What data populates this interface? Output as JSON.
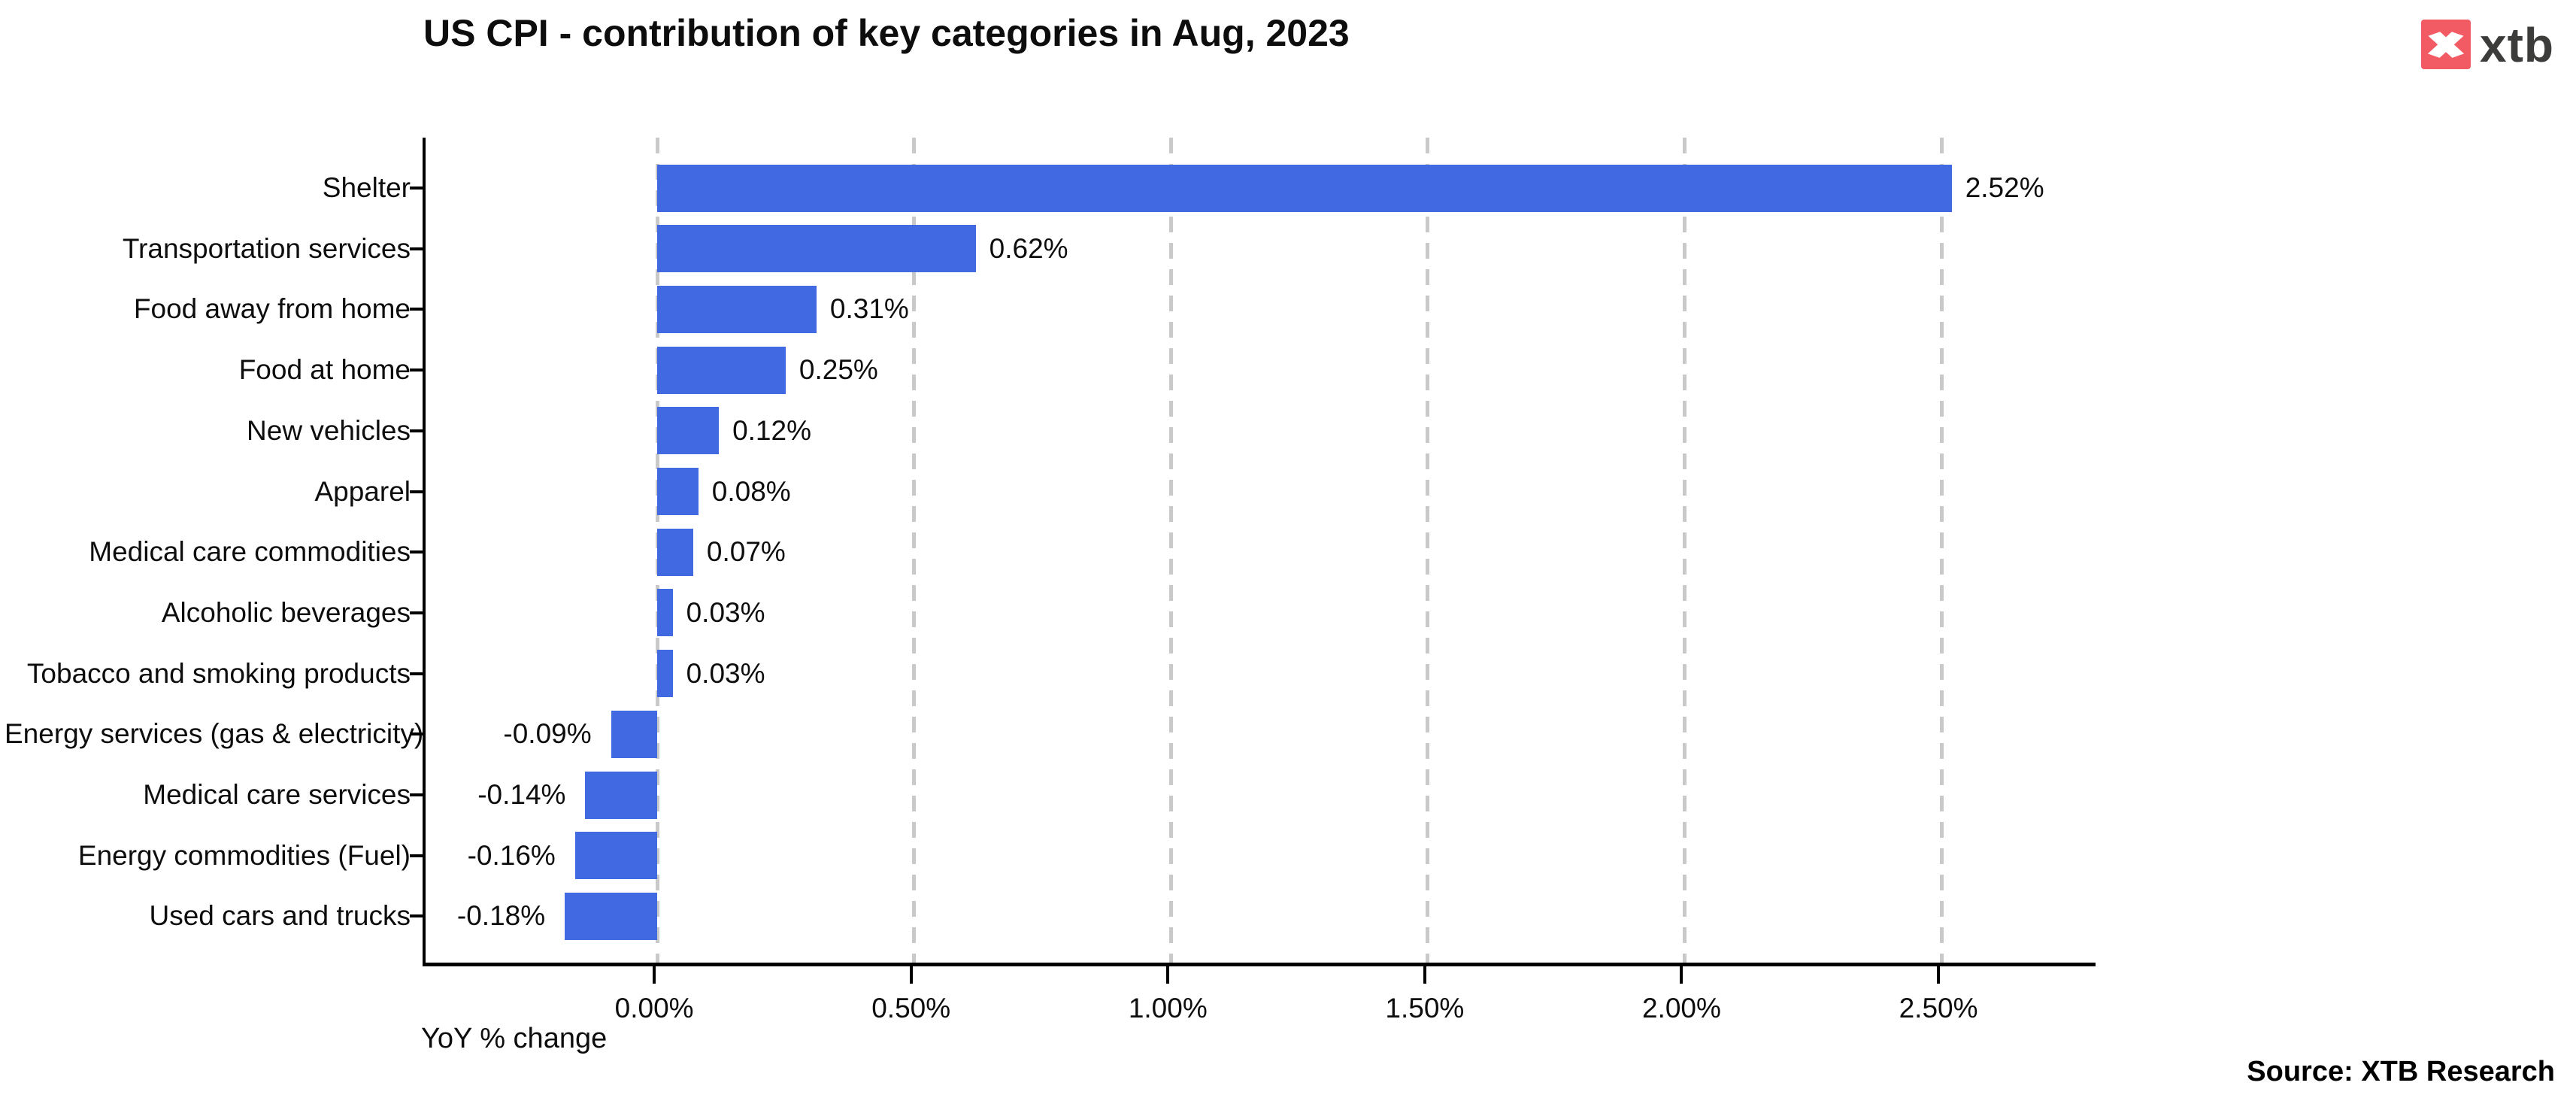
{
  "header": {
    "title": "US CPI - contribution of key categories in Aug, 2023"
  },
  "logo": {
    "brand": "xtb",
    "accent_color": "#F25A64",
    "text_color": "#3C3C3B"
  },
  "chart_data": {
    "type": "bar",
    "orientation": "horizontal",
    "title": "US CPI - contribution of key categories in Aug, 2023",
    "xlabel": "YoY % change",
    "categories": [
      "Shelter",
      "Transportation services",
      "Food away from home",
      "Food at home",
      "New vehicles",
      "Apparel",
      "Medical care commodities",
      "Alcoholic beverages",
      "Tobacco and smoking products",
      "Energy services (gas & electricity)",
      "Medical care services",
      "Energy commodities (Fuel)",
      "Used cars and trucks"
    ],
    "values": [
      2.52,
      0.62,
      0.31,
      0.25,
      0.12,
      0.08,
      0.07,
      0.03,
      0.03,
      -0.09,
      -0.14,
      -0.16,
      -0.18
    ],
    "value_labels": [
      "2.52%",
      "0.62%",
      "0.31%",
      "0.25%",
      "0.12%",
      "0.08%",
      "0.07%",
      "0.03%",
      "0.03%",
      "-0.09%",
      "-0.14%",
      "-0.16%",
      "-0.18%"
    ],
    "x_ticks": [
      "0.00%",
      "0.50%",
      "1.00%",
      "1.50%",
      "2.00%",
      "2.50%"
    ],
    "x_tick_values": [
      0,
      0.5,
      1.0,
      1.5,
      2.0,
      2.5
    ],
    "xlim": [
      -0.451,
      2.8
    ],
    "bar_color": "#4169E1",
    "gridline_color": "#c9c9c9",
    "grid": "vertical-dashed",
    "legend": "none"
  },
  "footer": {
    "source": "Source: XTB Research"
  }
}
